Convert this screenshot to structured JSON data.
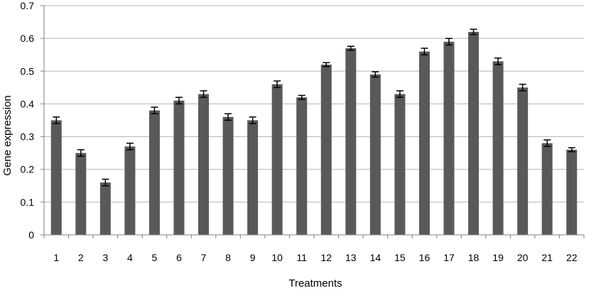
{
  "chart_data": {
    "type": "bar",
    "title": "",
    "xlabel": "Treatments",
    "ylabel": "Gene expression",
    "categories": [
      "1",
      "2",
      "3",
      "4",
      "5",
      "6",
      "7",
      "8",
      "9",
      "10",
      "11",
      "12",
      "13",
      "14",
      "15",
      "16",
      "17",
      "18",
      "19",
      "20",
      "21",
      "22"
    ],
    "values": [
      0.35,
      0.25,
      0.16,
      0.27,
      0.38,
      0.41,
      0.43,
      0.36,
      0.35,
      0.46,
      0.42,
      0.52,
      0.57,
      0.49,
      0.43,
      0.56,
      0.59,
      0.62,
      0.53,
      0.45,
      0.28,
      0.26
    ],
    "errors": [
      0.01,
      0.01,
      0.01,
      0.01,
      0.01,
      0.01,
      0.01,
      0.01,
      0.01,
      0.01,
      0.006,
      0.006,
      0.006,
      0.008,
      0.01,
      0.01,
      0.01,
      0.008,
      0.01,
      0.01,
      0.01,
      0.006
    ],
    "ylim": [
      0,
      0.7
    ],
    "yticks": [
      "0",
      "0.1",
      "0.2",
      "0.3",
      "0.4",
      "0.5",
      "0.6",
      "0.7"
    ],
    "grid": true,
    "legend": "none",
    "colors": {
      "bar": "#595959",
      "grid": "#b3b3b3",
      "axis": "#808080",
      "error": "#000000"
    }
  }
}
